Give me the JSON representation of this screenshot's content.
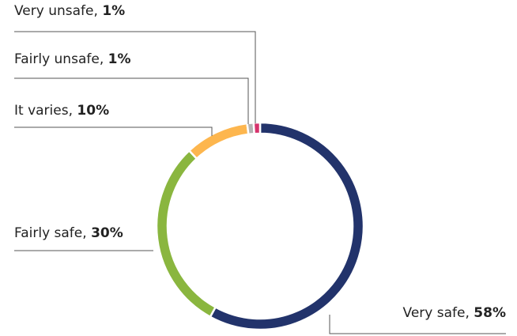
{
  "chart_data": {
    "type": "donut",
    "categories": [
      "Very safe",
      "Fairly safe",
      "It varies",
      "Fairly unsafe",
      "Very unsafe"
    ],
    "values": [
      58,
      30,
      10,
      1,
      1
    ],
    "value_labels": [
      "58%",
      "30%",
      "10%",
      "1%",
      "1%"
    ],
    "separator": ", ",
    "colors": [
      "#22336b",
      "#8ab63f",
      "#fdb64e",
      "#b3b3b3",
      "#d6336c"
    ]
  }
}
